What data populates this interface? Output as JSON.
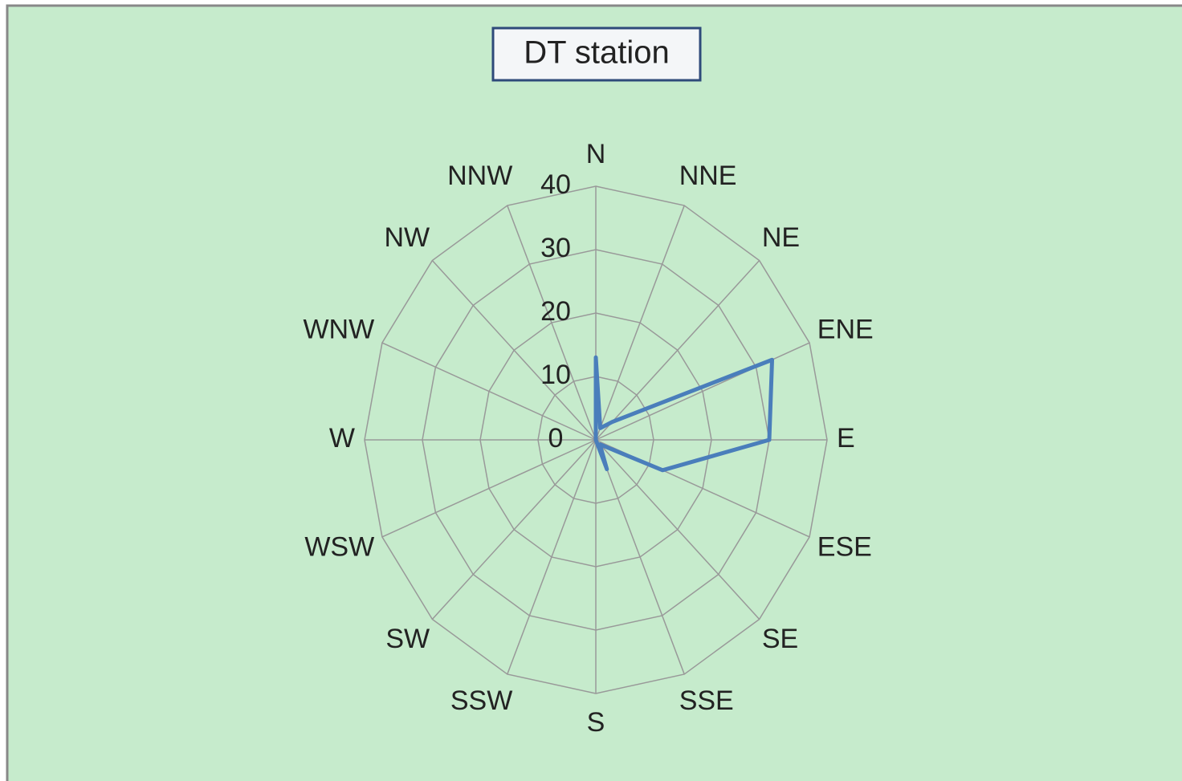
{
  "chart_data": {
    "type": "radar",
    "title": "DT station",
    "categories": [
      "N",
      "NNE",
      "NE",
      "ENE",
      "E",
      "ESE",
      "SE",
      "SSE",
      "S",
      "SSW",
      "SW",
      "WSW",
      "W",
      "WNW",
      "NW",
      "NNW"
    ],
    "values": [
      13,
      2,
      4,
      33,
      30,
      12.5,
      1,
      5,
      0,
      0,
      0,
      0,
      0,
      0,
      0,
      0
    ],
    "color": "#4a7ebb",
    "ylim": [
      0,
      40
    ],
    "yticks": [
      0,
      10,
      20,
      30,
      40
    ],
    "grid": true
  }
}
